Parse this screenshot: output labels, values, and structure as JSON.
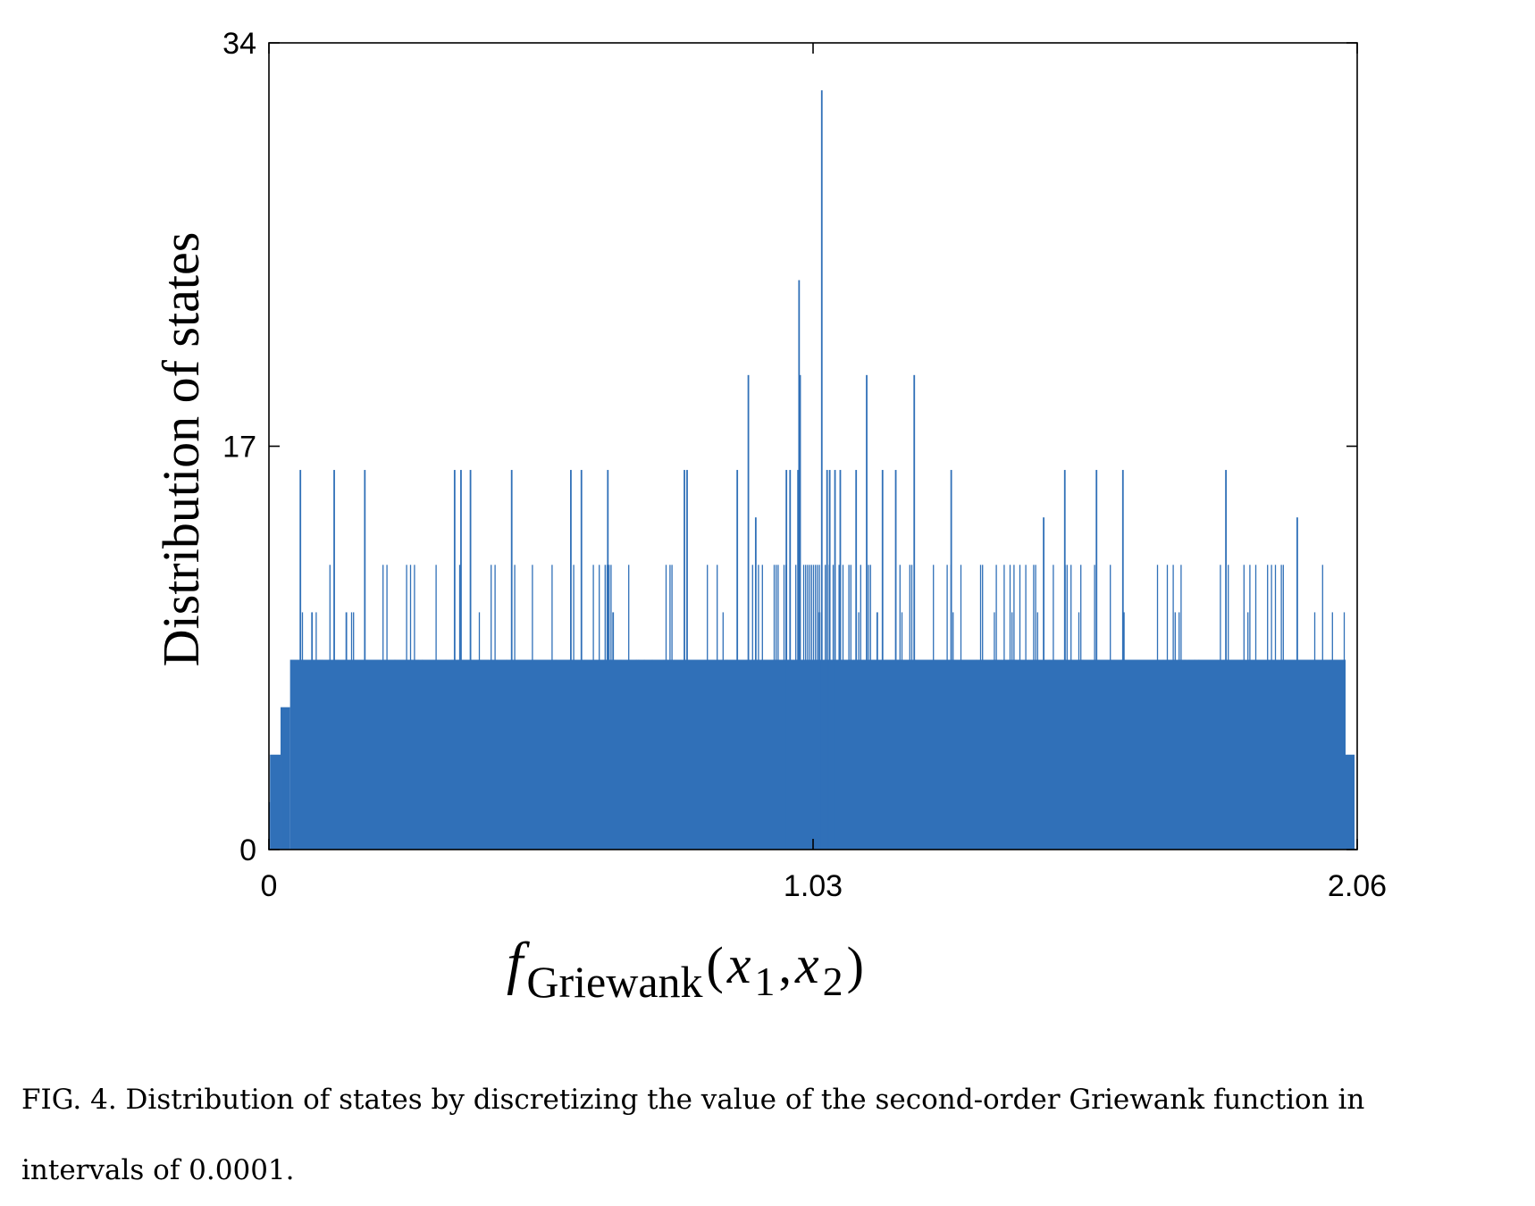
{
  "chart_data": {
    "type": "bar",
    "title": "",
    "xlabel": {
      "f": "f",
      "sub": "Griewank",
      "open": "(",
      "x1": "x",
      "x1_sub": "1",
      "comma": ",",
      "x2": "x",
      "x2_sub": "2",
      "close": ")"
    },
    "ylabel": "Distribution of states",
    "xlim": [
      0,
      2.06
    ],
    "ylim": [
      0,
      34
    ],
    "xticks": [
      0,
      1.03,
      2.06
    ],
    "xtick_labels": [
      "0",
      "1.03",
      "2.06"
    ],
    "yticks": [
      0,
      17,
      34
    ],
    "ytick_labels": [
      "0",
      "17",
      "34"
    ],
    "bin_width": 0.0001,
    "x_range_filled": [
      0.0,
      2.055
    ],
    "color": "#3070b8",
    "base_levels": [
      {
        "x_from": 0.0,
        "x_to": 0.002,
        "value": 2
      },
      {
        "x_from": 0.002,
        "x_to": 0.022,
        "value": 4
      },
      {
        "x_from": 0.022,
        "x_to": 0.04,
        "value": 6
      },
      {
        "x_from": 0.04,
        "x_to": 2.038,
        "value": 8
      },
      {
        "x_from": 2.038,
        "x_to": 2.055,
        "value": 4
      }
    ],
    "peaks": [
      {
        "x": 1.045,
        "value": 32
      },
      {
        "x": 1.002,
        "value": 24
      },
      {
        "x": 0.906,
        "value": 20
      },
      {
        "x": 1.004,
        "value": 20
      },
      {
        "x": 1.13,
        "value": 20
      },
      {
        "x": 1.22,
        "value": 20
      },
      {
        "x": 0.92,
        "value": 14
      },
      {
        "x": 1.465,
        "value": 14
      },
      {
        "x": 1.945,
        "value": 14
      },
      {
        "x": 0.058,
        "value": 16
      },
      {
        "x": 0.122,
        "value": 16
      },
      {
        "x": 0.18,
        "value": 16
      },
      {
        "x": 0.35,
        "value": 16
      },
      {
        "x": 0.362,
        "value": 16
      },
      {
        "x": 0.38,
        "value": 16
      },
      {
        "x": 0.458,
        "value": 16
      },
      {
        "x": 0.57,
        "value": 16
      },
      {
        "x": 0.59,
        "value": 16
      },
      {
        "x": 0.64,
        "value": 16
      },
      {
        "x": 0.785,
        "value": 16
      },
      {
        "x": 0.79,
        "value": 16
      },
      {
        "x": 0.885,
        "value": 16
      },
      {
        "x": 0.978,
        "value": 16
      },
      {
        "x": 0.985,
        "value": 16
      },
      {
        "x": 1.0,
        "value": 16
      },
      {
        "x": 1.055,
        "value": 16
      },
      {
        "x": 1.06,
        "value": 16
      },
      {
        "x": 1.07,
        "value": 16
      },
      {
        "x": 1.08,
        "value": 16
      },
      {
        "x": 1.11,
        "value": 16
      },
      {
        "x": 1.16,
        "value": 16
      },
      {
        "x": 1.185,
        "value": 16
      },
      {
        "x": 1.29,
        "value": 16
      },
      {
        "x": 1.505,
        "value": 16
      },
      {
        "x": 1.565,
        "value": 16
      },
      {
        "x": 1.615,
        "value": 16
      },
      {
        "x": 1.81,
        "value": 16
      },
      {
        "x": 0.145,
        "value": 10
      },
      {
        "x": 0.08,
        "value": 10
      },
      {
        "x": 0.65,
        "value": 10
      },
      {
        "x": 1.04,
        "value": 10
      },
      {
        "x": 1.15,
        "value": 10
      }
    ]
  },
  "caption": {
    "line1": "FIG. 4. Distribution of states by discretizing the value of the second-order Griewank function in",
    "line2": "intervals of 0.0001."
  }
}
